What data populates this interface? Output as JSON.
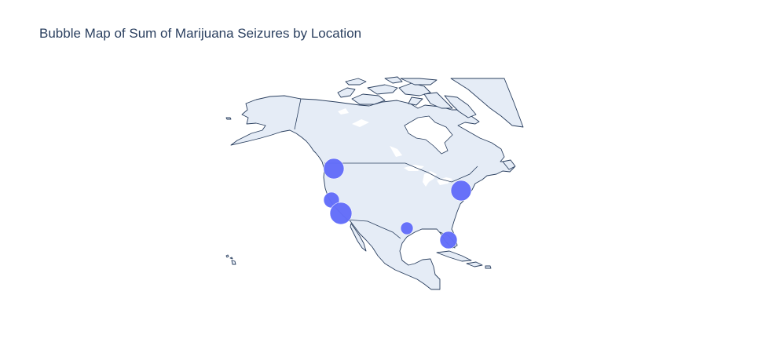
{
  "title": "Bubble Map of Sum of Marijuana Seizures by Location",
  "chart_data": {
    "type": "scatter",
    "projection": "geo-scope-north-america",
    "marker_color": "#636efa",
    "land_color": "#e5ecf6",
    "coastline_color": "#2a3f5f",
    "points": [
      {
        "lon": -123.1,
        "lat": 45.5,
        "size": 13
      },
      {
        "lon": -122.4,
        "lat": 37.8,
        "size": 10
      },
      {
        "lon": -118.3,
        "lat": 34.0,
        "size": 14
      },
      {
        "lon": -95.4,
        "lat": 29.8,
        "size": 8
      },
      {
        "lon": -80.2,
        "lat": 25.8,
        "size": 11
      },
      {
        "lon": -74.0,
        "lat": 40.7,
        "size": 13
      }
    ]
  }
}
